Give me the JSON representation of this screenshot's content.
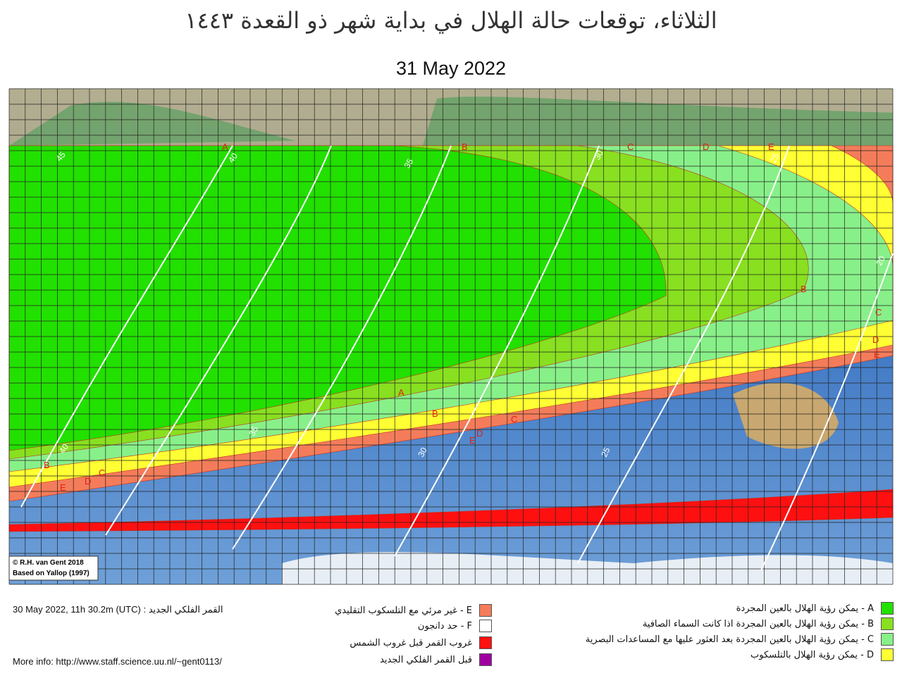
{
  "header": {
    "title": "الثلاثاء، توقعات حالة الهلال في بداية شهر ذو القعدة ١٤٤٣",
    "date": "31 May 2022"
  },
  "map": {
    "credit": "© R.H. van Gent 2018",
    "source": "Based on Yallop (1997)",
    "zone_labels": [
      "A",
      "B",
      "C",
      "D",
      "E"
    ],
    "contour_labels": [
      45,
      40,
      35,
      30,
      25,
      20
    ]
  },
  "legend": [
    {
      "label": "A - يمكن رؤية الهلال بالعين المجردة",
      "color": "#22e000"
    },
    {
      "label": "B - يمكن رؤية الهلال بالعين المجردة اذا كانت السماء الصافية",
      "color": "#88e020"
    },
    {
      "label": "C - يمكن رؤية الهلال بالعين المجردة بعد العثور عليها مع المساعدات البصرية",
      "color": "#88f088"
    },
    {
      "label": "D - يمكن رؤية الهلال بالتلسكوب",
      "color": "#ffff33"
    },
    {
      "label": "E - غير مرئي مع التلسكوب التقليدي",
      "color": "#f47c5a"
    },
    {
      "label": "F - حد دانجون",
      "color": "#ffffff"
    },
    {
      "label": "غروب القمر قبل غروب الشمس",
      "color": "#ff1010"
    },
    {
      "label": "قبل القمر  الفلكي الجديد",
      "color": "#a000a0"
    }
  ],
  "footer": {
    "new_moon": "30 May 2022, 11h 30.2m (UTC) : القمر الفلكي الجديد",
    "more_info": "More info: http://www.staff.science.uu.nl/~gent0113/"
  }
}
